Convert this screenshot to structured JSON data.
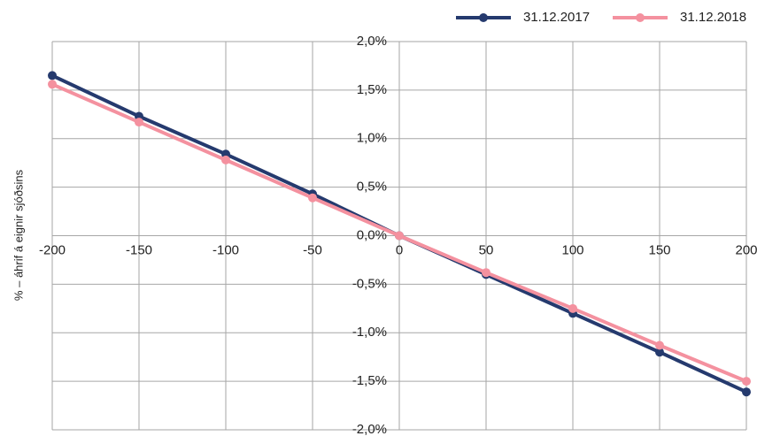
{
  "chart_data": {
    "type": "line",
    "y_label": "% – áhrif á eignir sjóðsins",
    "x": [
      -200,
      -150,
      -100,
      -50,
      0,
      50,
      100,
      150,
      200
    ],
    "series": [
      {
        "name": "31.12.2017",
        "color": "#253a6e",
        "values": [
          1.65,
          1.23,
          0.84,
          0.43,
          0,
          -0.4,
          -0.8,
          -1.2,
          -1.61
        ]
      },
      {
        "name": "31.12.2018",
        "color": "#f4919f",
        "values": [
          1.56,
          1.17,
          0.78,
          0.39,
          0,
          -0.38,
          -0.75,
          -1.13,
          -1.5
        ]
      }
    ],
    "xlim": [
      -200,
      200
    ],
    "xticks": [
      -200,
      -150,
      -100,
      -50,
      0,
      50,
      100,
      150,
      200
    ],
    "ylim": [
      -2,
      2
    ],
    "yticks": [
      {
        "value": 2,
        "label": "2,0%"
      },
      {
        "value": 1.5,
        "label": "1,5%"
      },
      {
        "value": 1,
        "label": "1,0%"
      },
      {
        "value": 0.5,
        "label": "0,5%"
      },
      {
        "value": 0,
        "label": "0,0%"
      },
      {
        "value": -0.5,
        "label": "-0,5%"
      },
      {
        "value": -1,
        "label": "-1,0%"
      },
      {
        "value": -1.5,
        "label": "-1,5%"
      },
      {
        "value": -2,
        "label": "-2,0%"
      }
    ],
    "grid": true,
    "legend": "top-right"
  }
}
